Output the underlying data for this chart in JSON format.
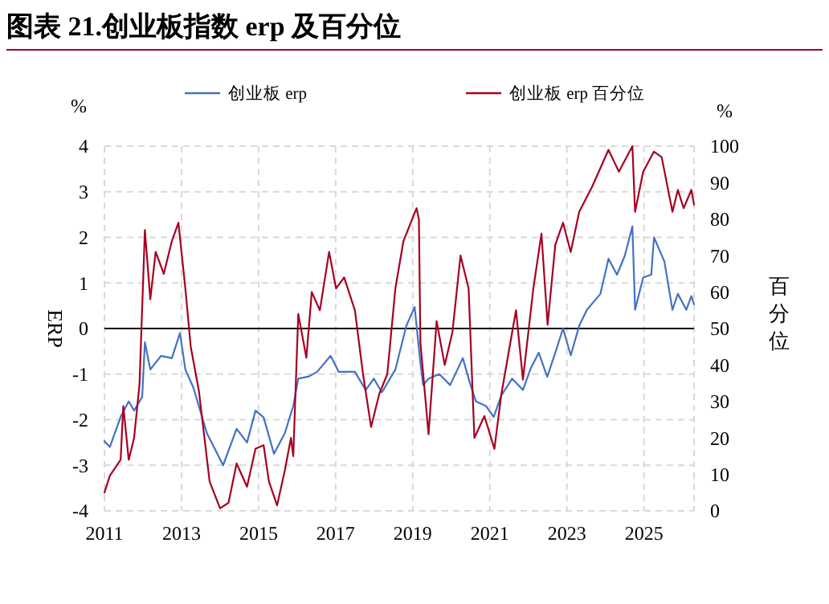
{
  "chart_data": {
    "type": "line",
    "title": "图表 21.创业板指数 erp 及百分位",
    "ylabel": "ERP",
    "y2label": "百分位",
    "annotations": [
      "%",
      "%"
    ],
    "legend": "top",
    "grid": true,
    "line_style": "solid",
    "xlim": [
      2011,
      2026.3
    ],
    "xticks": [
      2011,
      2013,
      2015,
      2017,
      2019,
      2021,
      2023,
      2025
    ],
    "ylim": [
      -4,
      4
    ],
    "yticks": [
      -4,
      -3,
      -2,
      -1,
      0,
      1,
      2,
      3,
      4
    ],
    "y2lim": [
      0,
      100
    ],
    "y2ticks": [
      0,
      10,
      20,
      30,
      40,
      50,
      60,
      70,
      80,
      90,
      100
    ],
    "ref_lines": [
      {
        "axis": "y",
        "value": 0,
        "color": "#000000",
        "line_style": "solid"
      }
    ],
    "series": [
      {
        "name": "创业板 erp",
        "color": "#4472c4",
        "x": [
          2011.0,
          2011.14,
          2011.42,
          2011.63,
          2011.77,
          2011.98,
          2012.05,
          2012.19,
          2012.47,
          2012.75,
          2012.96,
          2013.1,
          2013.31,
          2013.66,
          2014.08,
          2014.43,
          2014.7,
          2014.92,
          2015.13,
          2015.4,
          2015.68,
          2015.9,
          2016.03,
          2016.31,
          2016.52,
          2016.87,
          2017.08,
          2017.5,
          2017.78,
          2017.99,
          2018.2,
          2018.55,
          2018.83,
          2019.05,
          2019.2,
          2019.27,
          2019.41,
          2019.69,
          2019.97,
          2020.3,
          2020.5,
          2020.64,
          2020.9,
          2021.1,
          2021.3,
          2021.58,
          2021.86,
          2022.06,
          2022.27,
          2022.49,
          2022.7,
          2022.9,
          2023.1,
          2023.32,
          2023.52,
          2023.87,
          2024.08,
          2024.3,
          2024.5,
          2024.7,
          2024.77,
          2024.98,
          2025.19,
          2025.26,
          2025.53,
          2025.74,
          2025.88,
          2026.1,
          2026.23,
          2026.3
        ],
        "values": [
          -2.47,
          -2.6,
          -1.94,
          -1.6,
          -1.8,
          -1.5,
          -0.3,
          -0.9,
          -0.6,
          -0.65,
          -0.1,
          -0.9,
          -1.3,
          -2.3,
          -3.0,
          -2.2,
          -2.5,
          -1.8,
          -1.95,
          -2.75,
          -2.3,
          -1.7,
          -1.1,
          -1.05,
          -0.95,
          -0.6,
          -0.95,
          -0.95,
          -1.35,
          -1.1,
          -1.4,
          -0.9,
          0.05,
          0.47,
          -0.76,
          -1.24,
          -1.1,
          -1.0,
          -1.24,
          -0.65,
          -1.24,
          -1.6,
          -1.7,
          -1.94,
          -1.47,
          -1.1,
          -1.35,
          -0.88,
          -0.53,
          -1.06,
          -0.53,
          0.0,
          -0.59,
          0.06,
          0.41,
          0.76,
          1.53,
          1.18,
          1.59,
          2.24,
          0.41,
          1.12,
          1.18,
          2.0,
          1.47,
          0.41,
          0.76,
          0.41,
          0.71,
          0.53
        ]
      },
      {
        "name": "创业板 erp 百分位",
        "color": "#a50021",
        "axis": "y2",
        "x": [
          2011.0,
          2011.14,
          2011.42,
          2011.49,
          2011.63,
          2011.77,
          2011.91,
          2012.05,
          2012.19,
          2012.33,
          2012.54,
          2012.75,
          2012.92,
          2013.1,
          2013.24,
          2013.45,
          2013.73,
          2014.0,
          2014.22,
          2014.43,
          2014.7,
          2014.92,
          2015.13,
          2015.27,
          2015.48,
          2015.68,
          2015.84,
          2015.9,
          2016.03,
          2016.24,
          2016.38,
          2016.59,
          2016.83,
          2017.01,
          2017.22,
          2017.5,
          2017.71,
          2017.92,
          2018.13,
          2018.34,
          2018.55,
          2018.76,
          2019.1,
          2019.16,
          2019.2,
          2019.41,
          2019.62,
          2019.83,
          2020.03,
          2020.24,
          2020.45,
          2020.6,
          2020.86,
          2021.12,
          2021.3,
          2021.68,
          2021.86,
          2022.13,
          2022.34,
          2022.5,
          2022.7,
          2022.9,
          2023.1,
          2023.32,
          2023.66,
          2024.08,
          2024.35,
          2024.7,
          2024.77,
          2024.98,
          2025.26,
          2025.46,
          2025.74,
          2025.88,
          2026.03,
          2026.23,
          2026.3
        ],
        "values": [
          5,
          9.6,
          14,
          28.7,
          14,
          20,
          34.6,
          77,
          58,
          71,
          65,
          74,
          79,
          61,
          45,
          33,
          8,
          0.7,
          2.2,
          13,
          6.6,
          17,
          18,
          8,
          1.5,
          11,
          20,
          15,
          54,
          42,
          60,
          55,
          71,
          61,
          64,
          55,
          37.5,
          23,
          32,
          37.5,
          61,
          74,
          83,
          80,
          46,
          21,
          52,
          40,
          49,
          70,
          61,
          20,
          26,
          17,
          32,
          55,
          36,
          61,
          76,
          51,
          73,
          79,
          71,
          82,
          89,
          99,
          93,
          100,
          82,
          93,
          98.5,
          97,
          82,
          88,
          83,
          88,
          84
        ]
      }
    ]
  }
}
